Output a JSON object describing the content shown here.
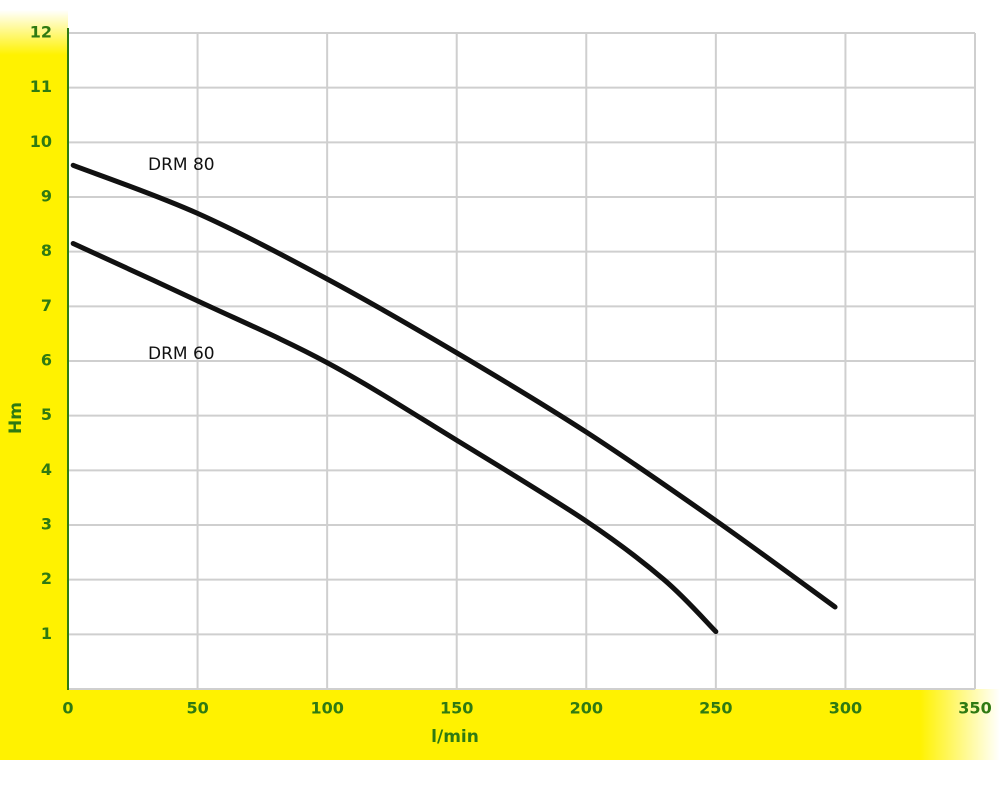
{
  "chart_data": {
    "type": "line",
    "x_label": "l/min",
    "y_label": "Hm",
    "xlim": [
      0,
      350
    ],
    "xticks": [
      0,
      50,
      100,
      150,
      200,
      250,
      300,
      350
    ],
    "ylim": [
      0,
      12
    ],
    "yticks": [
      1,
      2,
      3,
      4,
      5,
      6,
      7,
      8,
      9,
      10,
      11,
      12
    ],
    "grid": true,
    "series": [
      {
        "name": "DRM 80",
        "color": "#111111",
        "x": [
          2,
          50,
          100,
          150,
          200,
          250,
          296
        ],
        "values": [
          9.58,
          8.7,
          7.5,
          6.15,
          4.7,
          3.08,
          1.5
        ]
      },
      {
        "name": "DRM 60",
        "color": "#111111",
        "x": [
          2,
          50,
          100,
          150,
          200,
          230,
          250
        ],
        "values": [
          8.15,
          7.1,
          5.97,
          4.55,
          3.07,
          2.0,
          1.05
        ]
      }
    ]
  }
}
